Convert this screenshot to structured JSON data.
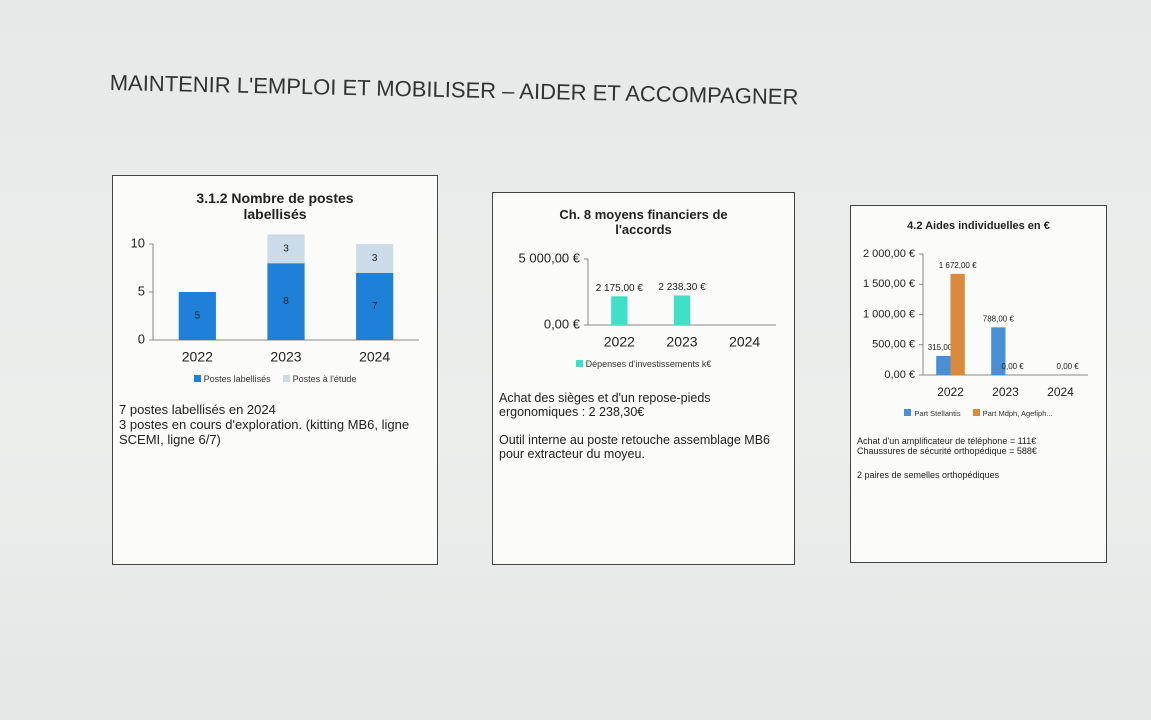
{
  "title": "MAINTENIR L'EMPLOI ET MOBILISER – AIDER ET ACCOMPAGNER",
  "chart_data": [
    {
      "type": "bar",
      "stacked": true,
      "label_position": "inside",
      "title": "3.1.2 Nombre de postes labellisés",
      "categories": [
        "2022",
        "2023",
        "2024"
      ],
      "series": [
        {
          "name": "Postes labellisés",
          "color": "#1f80d8",
          "values": [
            5,
            8,
            7
          ]
        },
        {
          "name": "Postes à l'étude",
          "color": "#cbdce8",
          "values": [
            null,
            3,
            3
          ]
        }
      ],
      "ylim": [
        0,
        10
      ],
      "yticks": [
        0,
        5,
        10
      ],
      "legend": "bottom",
      "notes": [
        "7 postes labellisés en 2024",
        "3 postes en cours d'exploration. (kitting MB6, ligne SCEMI, ligne 6/7)"
      ]
    },
    {
      "type": "bar",
      "stacked": false,
      "label_position": "above",
      "title": "Ch. 8 moyens financiers de l'accords",
      "categories": [
        "2022",
        "2023",
        "2024"
      ],
      "series": [
        {
          "name": "Dépenses d'investissements k€",
          "color": "#3fe0c6",
          "values": [
            2175,
            2238.3,
            null
          ],
          "value_labels": [
            "2 175,00 €",
            "2 238,30 €",
            null
          ]
        }
      ],
      "ylim": [
        0,
        5000
      ],
      "yticks": [
        {
          "value": 0,
          "label": "0,00 €"
        },
        {
          "value": 5000,
          "label": "5 000,00 €"
        }
      ],
      "legend": "bottom",
      "notes": [
        "Achat des sièges et d'un repose-pieds ergonomiques : 2 238,30€",
        "Outil interne au poste retouche assemblage MB6 pour extracteur du moyeu."
      ]
    },
    {
      "type": "bar",
      "stacked": false,
      "label_position": "above",
      "title": "4.2 Aides individuelles en €",
      "categories": [
        "2022",
        "2023",
        "2024"
      ],
      "series": [
        {
          "name": "Part Stellantis",
          "color": "#4a8fd6",
          "values": [
            315,
            788,
            null
          ],
          "value_labels": [
            "315,00 €",
            "788,00 €",
            null
          ]
        },
        {
          "name": "Part Mdph, Agefiph...",
          "color": "#d98a3a",
          "values": [
            1672,
            0,
            0
          ],
          "value_labels": [
            "1 672,00 €",
            "0,00 €",
            "0,00 €"
          ]
        }
      ],
      "ylim": [
        0,
        2000
      ],
      "yticks": [
        {
          "value": 0,
          "label": "0,00 €"
        },
        {
          "value": 500,
          "label": "500,00 €"
        },
        {
          "value": 1000,
          "label": "1 000,00 €"
        },
        {
          "value": 1500,
          "label": "1 500,00 €"
        },
        {
          "value": 2000,
          "label": "2 000,00 €"
        }
      ],
      "legend": "bottom",
      "notes": [
        "Achat d'un amplificateur de téléphone = 111€",
        "Chaussures de sécurité orthopédique = 588€",
        "2 paires de semelles orthopédiques"
      ]
    }
  ]
}
